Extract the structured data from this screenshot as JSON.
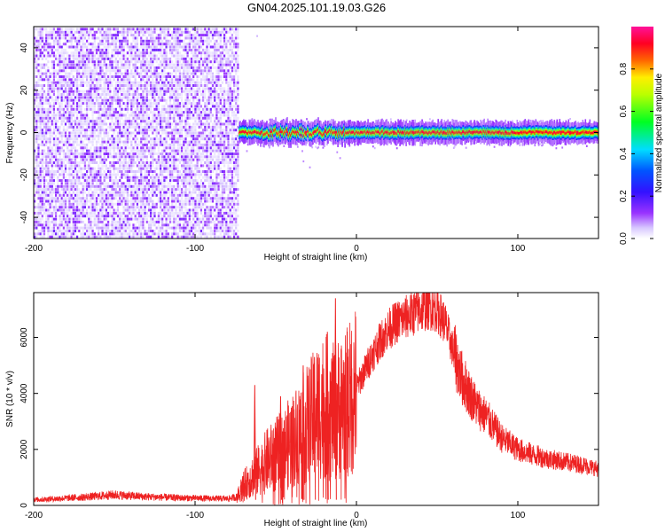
{
  "title": "GN04.2025.101.19.03.G26",
  "colorbar": {
    "label": "Normalized spectral amplitude",
    "ticks": [
      0.0,
      0.2,
      0.4,
      0.6,
      0.8
    ],
    "tick_labels": [
      "0.0",
      "0.2",
      "0.4",
      "0.6",
      "0.8"
    ]
  },
  "chart_data": [
    {
      "type": "heatmap",
      "title": "",
      "xlabel": "Height of straight line (km)",
      "ylabel": "Frequency (Hz)",
      "xlim": [
        -200,
        150
      ],
      "ylim": [
        -50,
        50
      ],
      "x_ticks": [
        -200,
        -100,
        0,
        100
      ],
      "x_tick_labels": [
        "-200",
        "-100",
        "0",
        "100"
      ],
      "y_ticks": [
        -40,
        -20,
        0,
        20,
        40
      ],
      "y_tick_labels": [
        "-40",
        "-20",
        "0",
        "20",
        "40"
      ],
      "colorscale": "rainbow (white-violet-blue-cyan-green-yellow-red-magenta)",
      "value_range": [
        0,
        1
      ],
      "regions": [
        {
          "x_range": [
            -200,
            -73
          ],
          "freq_range": [
            -50,
            50
          ],
          "amplitude": "low, broadband noise (approx. 0.0-0.15)"
        },
        {
          "x_range": [
            -73,
            150
          ],
          "freq_center": 0,
          "freq_halfwidth": 3,
          "amplitude": "high (approx. 0.8-1.0) narrow band at 0 Hz"
        }
      ]
    },
    {
      "type": "line",
      "title": "",
      "xlabel": "Height of straight line (km)",
      "ylabel": "SNR (10 * v/v)",
      "xlim": [
        -200,
        150
      ],
      "ylim": [
        0,
        7600
      ],
      "x_ticks": [
        -200,
        -100,
        0,
        100
      ],
      "x_tick_labels": [
        "-200",
        "-100",
        "0",
        "100"
      ],
      "y_ticks": [
        0,
        2000,
        4000,
        6000
      ],
      "y_tick_labels": [
        "0",
        "2000",
        "4000",
        "6000"
      ],
      "color": "#ee2222",
      "series": [
        {
          "x": [
            -200,
            -190,
            -180,
            -170,
            -160,
            -150,
            -140,
            -130,
            -120,
            -110,
            -100,
            -90,
            -80,
            -74,
            -70,
            -65,
            -60,
            -55,
            -50,
            -45,
            -40,
            -35,
            -30,
            -25,
            -20,
            -15,
            -10,
            -5,
            0,
            5,
            10,
            15,
            20,
            25,
            30,
            35,
            40,
            45,
            50,
            55,
            60,
            65,
            70,
            75,
            80,
            85,
            90,
            95,
            100,
            110,
            120,
            130,
            140,
            150
          ],
          "y": [
            200,
            230,
            260,
            290,
            330,
            380,
            340,
            310,
            290,
            270,
            260,
            250,
            240,
            300,
            700,
            1000,
            1300,
            1600,
            1800,
            2000,
            2300,
            2600,
            2900,
            3300,
            3600,
            3300,
            3500,
            3700,
            4200,
            4800,
            5400,
            5900,
            6300,
            6550,
            6700,
            6850,
            7000,
            7100,
            7000,
            6500,
            5500,
            4600,
            4000,
            3500,
            3200,
            2800,
            2400,
            2200,
            2000,
            1800,
            1650,
            1550,
            1450,
            1300
          ]
        }
      ],
      "spikes": [
        {
          "x": -63,
          "y": 4300
        },
        {
          "x": -47,
          "y": 3900
        },
        {
          "x": -33,
          "y": 5000
        },
        {
          "x": -26,
          "y": 5300
        },
        {
          "x": -13,
          "y": 7400
        },
        {
          "x": -18,
          "y": 6200
        }
      ]
    }
  ]
}
